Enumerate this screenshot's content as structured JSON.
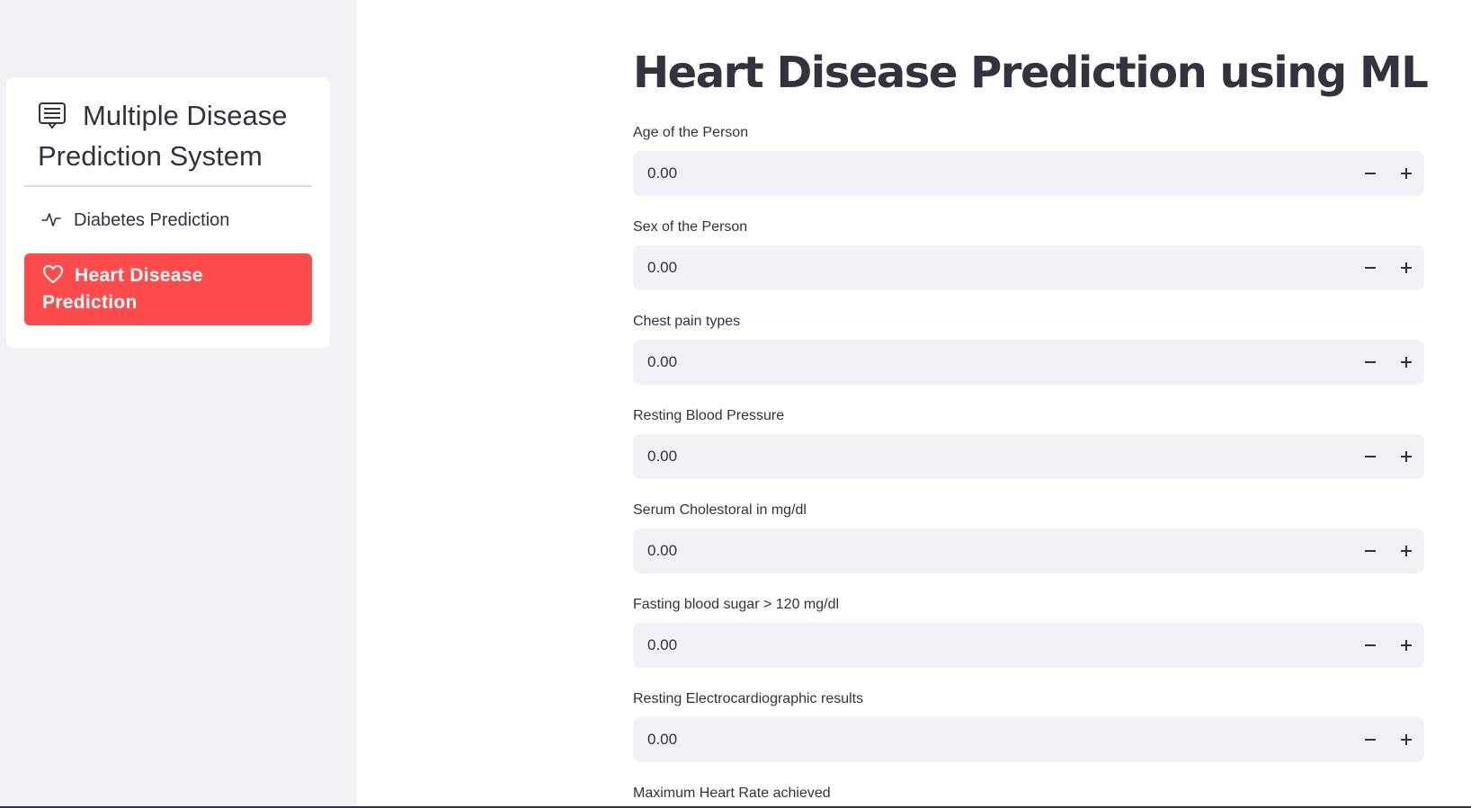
{
  "sidebar": {
    "menu_title": "Multiple Disease Prediction System",
    "menu_icon": "list-alt-icon",
    "items": [
      {
        "label": "Diabetes Prediction",
        "icon": "activity-icon",
        "active": false
      },
      {
        "label": "Heart Disease Prediction",
        "icon": "heart-icon",
        "active": true
      }
    ],
    "active_color": "#ff4b4b"
  },
  "main": {
    "title": "Heart Disease Prediction using ML",
    "fields": [
      {
        "label": "Age of the Person",
        "value": "0.00"
      },
      {
        "label": "Sex of the Person",
        "value": "0.00"
      },
      {
        "label": "Chest pain types",
        "value": "0.00"
      },
      {
        "label": "Resting Blood Pressure",
        "value": "0.00"
      },
      {
        "label": "Serum Cholestoral in mg/dl",
        "value": "0.00"
      },
      {
        "label": "Fasting blood sugar > 120 mg/dl",
        "value": "0.00"
      },
      {
        "label": "Resting Electrocardiographic results",
        "value": "0.00"
      },
      {
        "label": "Maximum Heart Rate achieved",
        "value": ""
      }
    ]
  }
}
